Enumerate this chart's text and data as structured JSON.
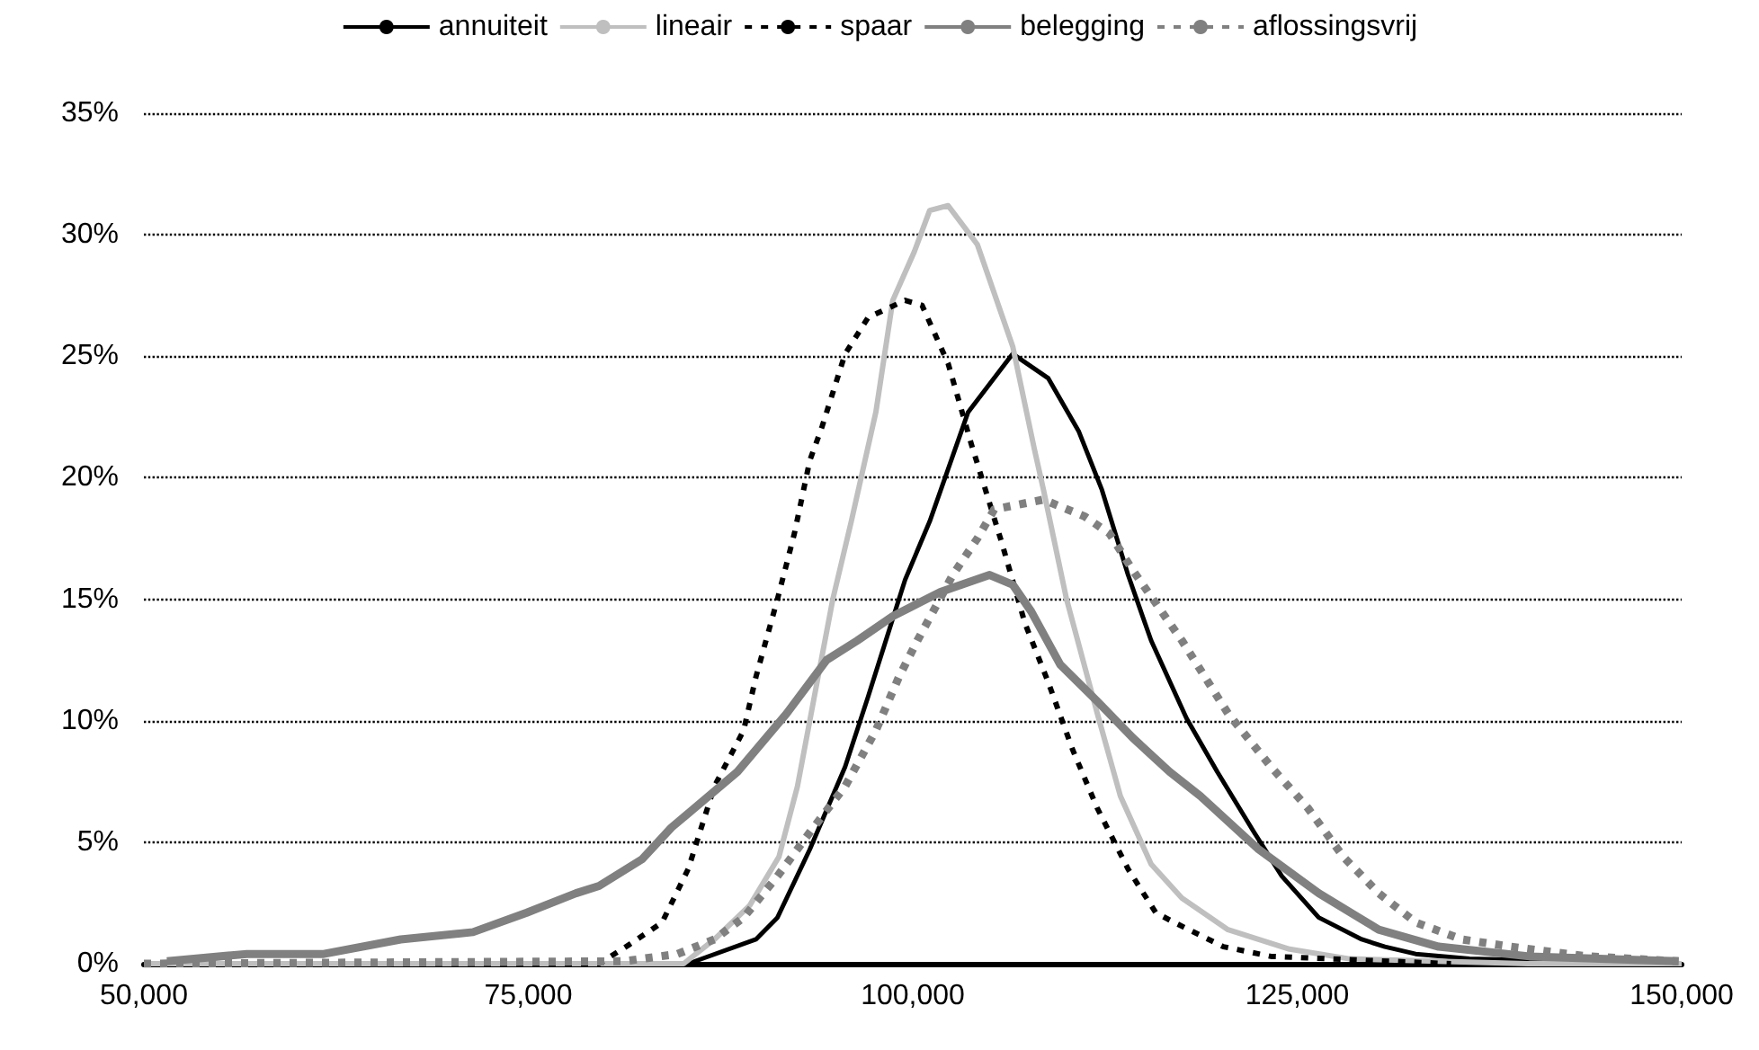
{
  "chart_data": {
    "type": "line",
    "legend": "top",
    "grid": "y",
    "marker": "none",
    "xlim": [
      50000,
      150000
    ],
    "xticks": [
      {
        "value": 50000,
        "label": "50,000"
      },
      {
        "value": 75000,
        "label": "75,000"
      },
      {
        "value": 100000,
        "label": "100,000"
      },
      {
        "value": 125000,
        "label": "125,000"
      },
      {
        "value": 150000,
        "label": "150,000"
      }
    ],
    "ylim": [
      0,
      35
    ],
    "yticks": [
      {
        "value": 0,
        "label": "0%"
      },
      {
        "value": 5,
        "label": "5%"
      },
      {
        "value": 10,
        "label": "10%"
      },
      {
        "value": 15,
        "label": "15%"
      },
      {
        "value": 20,
        "label": "20%"
      },
      {
        "value": 25,
        "label": "25%"
      },
      {
        "value": 30,
        "label": "30%"
      },
      {
        "value": 35,
        "label": "35%"
      }
    ],
    "series": [
      {
        "name": "annuiteit",
        "color": "#000000",
        "line_style": "solid",
        "x": [
          50000,
          85400,
          89800,
          91200,
          93300,
          95600,
          97100,
          98500,
          99500,
          101100,
          103600,
          106500,
          108800,
          110800,
          112300,
          114000,
          115500,
          117800,
          119800,
          122200,
          124000,
          126400,
          129200,
          130700,
          132700,
          136200,
          150000
        ],
        "values": [
          0,
          0,
          1.0,
          1.9,
          4.7,
          8.1,
          11.0,
          13.8,
          15.8,
          18.2,
          22.7,
          25.1,
          24.1,
          21.9,
          19.5,
          16.0,
          13.3,
          10.1,
          7.9,
          5.4,
          3.6,
          1.9,
          1.0,
          0.7,
          0.4,
          0.2,
          0
        ]
      },
      {
        "name": "lineair",
        "color": "#bfbfbf",
        "line_style": "solid",
        "x": [
          50000,
          85100,
          87100,
          89400,
          91300,
          92500,
          93600,
          94800,
          96000,
          97600,
          98700,
          100100,
          101100,
          102300,
          104200,
          106500,
          107900,
          108500,
          110000,
          112000,
          113500,
          115500,
          117500,
          120500,
          124500,
          128400,
          140000,
          150000
        ],
        "values": [
          0,
          0,
          1.0,
          2.4,
          4.4,
          7.3,
          11.0,
          15.0,
          18.2,
          22.7,
          27.3,
          29.3,
          31.0,
          31.2,
          29.6,
          25.4,
          21.2,
          19.5,
          15.0,
          10.3,
          6.9,
          4.1,
          2.7,
          1.4,
          0.6,
          0.2,
          0,
          0
        ]
      },
      {
        "name": "spaar",
        "color": "#000000",
        "line_style": "dashed",
        "x": [
          50000,
          79600,
          81600,
          83700,
          85400,
          87100,
          89000,
          89800,
          91200,
          92300,
          93300,
          94100,
          95600,
          97100,
          99500,
          100600,
          102300,
          103800,
          105800,
          107300,
          108800,
          110400,
          112000,
          114000,
          115800,
          117000,
          120200,
          123300,
          135000
        ],
        "values": [
          0,
          0,
          0.8,
          1.7,
          3.9,
          7.3,
          9.6,
          11.8,
          15.0,
          17.7,
          20.7,
          22.1,
          25.1,
          26.6,
          27.3,
          27.1,
          24.7,
          21.4,
          17.3,
          14.0,
          11.6,
          8.8,
          6.4,
          3.9,
          2.1,
          1.7,
          0.7,
          0.3,
          0
        ]
      },
      {
        "name": "belegging",
        "color": "#808080",
        "line_style": "solid",
        "x": [
          51500,
          56700,
          61700,
          66700,
          71400,
          74900,
          78100,
          79600,
          82400,
          84300,
          88600,
          91800,
          94400,
          96400,
          98700,
          101800,
          105000,
          106500,
          107700,
          109600,
          112000,
          114300,
          116700,
          118700,
          122500,
          126400,
          130300,
          134200,
          140100,
          149800
        ],
        "values": [
          0.1,
          0.4,
          0.4,
          1.0,
          1.3,
          2.1,
          2.9,
          3.2,
          4.3,
          5.6,
          7.9,
          10.3,
          12.5,
          13.3,
          14.3,
          15.3,
          16.0,
          15.6,
          14.5,
          12.3,
          10.8,
          9.3,
          7.9,
          6.9,
          4.7,
          2.9,
          1.4,
          0.7,
          0.3,
          0.1
        ]
      },
      {
        "name": "aflossingsvrij",
        "color": "#808080",
        "line_style": "dashed",
        "x": [
          50000,
          81200,
          84700,
          87100,
          89000,
          91200,
          93300,
          95600,
          97600,
          99100,
          100300,
          101500,
          102600,
          104200,
          105300,
          108500,
          111200,
          112800,
          114300,
          117500,
          120500,
          123300,
          125700,
          128000,
          130300,
          132700,
          135700,
          138900,
          143900,
          149800
        ],
        "values": [
          0,
          0.1,
          0.4,
          1.0,
          1.9,
          3.6,
          5.4,
          7.3,
          9.6,
          11.8,
          13.3,
          14.7,
          16.0,
          17.5,
          18.7,
          19.1,
          18.4,
          17.7,
          16.2,
          13.3,
          10.3,
          8.1,
          6.4,
          4.4,
          2.9,
          1.7,
          1.0,
          0.7,
          0.3,
          0.1
        ]
      }
    ]
  }
}
